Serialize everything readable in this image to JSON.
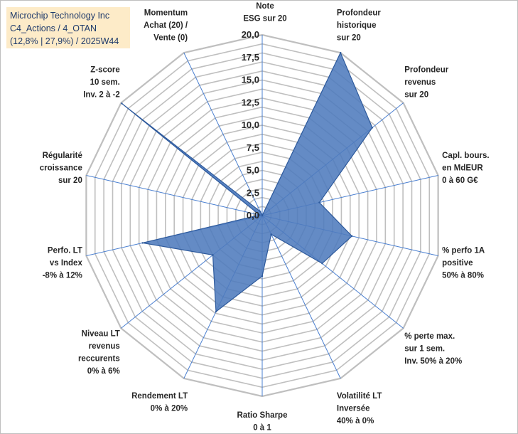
{
  "title": {
    "line1": "Microchip Technology Inc",
    "line2": "C4_Actions / 4_OTAN",
    "line3": "(12,8% | 27,9%) / 2025W44"
  },
  "colors": {
    "fill": "#4f7bbd",
    "stroke": "#2e5a9c",
    "grid": "#bfbfbf",
    "spoke": "#4a7fd0",
    "title_bg": "#fdebc8",
    "title_text": "#1f3a6b"
  },
  "chart_data": {
    "type": "radar",
    "series": [
      {
        "name": "Microchip Technology Inc"
      }
    ],
    "rmin": 0,
    "rmax": 20,
    "ticks": [
      "0,0",
      "2,5",
      "5,0",
      "7,5",
      "10,0",
      "12,5",
      "15,0",
      "17,5",
      "20,0"
    ],
    "axes": [
      {
        "label": [
          "Note",
          "ESG sur 20"
        ],
        "value": 0
      },
      {
        "label": [
          "Profondeur",
          "historique",
          "sur 20"
        ],
        "value": 20
      },
      {
        "label": [
          "Profondeur",
          "revenus",
          "sur 20"
        ],
        "value": 15.6
      },
      {
        "label": [
          "Capl. bours.",
          "en MdEUR",
          "0 à 60 G€"
        ],
        "value": 6.5
      },
      {
        "label": [
          "% perfo 1A",
          "positive",
          "50% à 80%"
        ],
        "value": 10.2
      },
      {
        "label": [
          "% perte max.",
          "sur 1 sem.",
          "Inv. 50% à 20%"
        ],
        "value": 8.5
      },
      {
        "label": [
          "Volatilité LT",
          "Inversée",
          "40% à 0%"
        ],
        "value": 2.3
      },
      {
        "label": [
          "Ratio Sharpe",
          "0 à 1"
        ],
        "value": 6.7
      },
      {
        "label": [
          "Rendement LT",
          "0% à 20%"
        ],
        "value": 11.8
      },
      {
        "label": [
          "Niveau LT",
          "revenus",
          "reccurents",
          "0% à 6%"
        ],
        "value": 7.0
      },
      {
        "label": [
          "Perfo. LT",
          "vs Index",
          "-8% à 12%"
        ],
        "value": 13.6
      },
      {
        "label": [
          "Régularité",
          "croissance",
          "sur 20"
        ],
        "value": 0.3
      },
      {
        "label": [
          "Z-score",
          "10 sem.",
          "Inv. 2 à -2"
        ],
        "value": 19.9
      },
      {
        "label": [
          "Momentum",
          "Achat (20) /",
          "Vente (0)"
        ],
        "value": 0.5
      }
    ]
  }
}
